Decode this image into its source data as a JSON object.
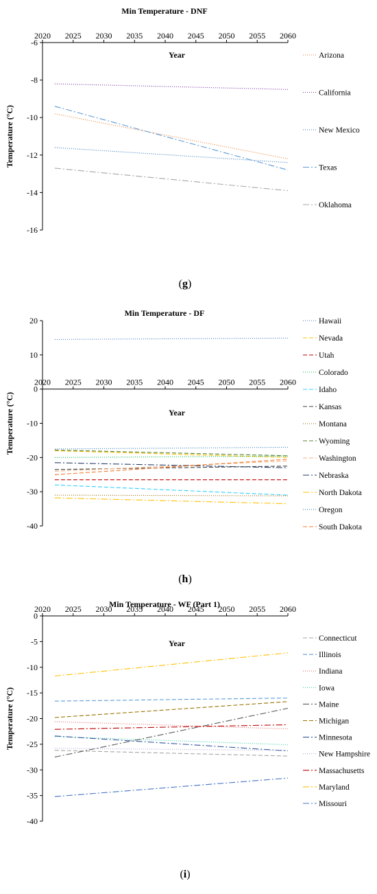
{
  "chart_data": [
    {
      "type": "line",
      "panel_label": "g",
      "title": "Min Temperature - DNF",
      "xlabel": "Year",
      "ylabel": "Temperature (°C)",
      "xticks": [
        2020,
        2025,
        2030,
        2035,
        2040,
        2045,
        2050,
        2055,
        2060
      ],
      "yticks": [
        -6,
        -8,
        -10,
        -12,
        -14,
        -16
      ],
      "xlim": [
        2020,
        2060
      ],
      "ylim": [
        -16,
        -6
      ],
      "legend_position": "right",
      "series": [
        {
          "name": "Arizona",
          "x": [
            2022,
            2060
          ],
          "y": [
            -9.8,
            -12.2
          ],
          "color": "#ed7d31",
          "dash": "1,2"
        },
        {
          "name": "California",
          "x": [
            2022,
            2060
          ],
          "y": [
            -8.2,
            -8.5
          ],
          "color": "#7030a0",
          "dash": "1,2"
        },
        {
          "name": "New Mexico",
          "x": [
            2022,
            2060
          ],
          "y": [
            -11.6,
            -12.4
          ],
          "color": "#2e75b6",
          "dash": "1,2"
        },
        {
          "name": "Texas",
          "x": [
            2022,
            2060
          ],
          "y": [
            -9.4,
            -12.8
          ],
          "color": "#5b9bd5",
          "dash": "9,3,2,3"
        },
        {
          "name": "Oklahoma",
          "x": [
            2022,
            2060
          ],
          "y": [
            -12.7,
            -13.9
          ],
          "color": "#a5a5a5",
          "dash": "9,3,2,3"
        }
      ]
    },
    {
      "type": "line",
      "panel_label": "h",
      "title": "Min Temperature - DF",
      "xlabel": "Year",
      "ylabel": "Temperature (°C)",
      "xticks": [
        2020,
        2025,
        2030,
        2035,
        2040,
        2045,
        2050,
        2055,
        2060
      ],
      "yticks": [
        20,
        10,
        0,
        -10,
        -20,
        -30,
        -40
      ],
      "xlim": [
        2020,
        2060
      ],
      "ylim": [
        -40,
        20
      ],
      "legend_position": "right",
      "series": [
        {
          "name": "Hawaii",
          "x": [
            2022,
            2060
          ],
          "y": [
            14.5,
            14.9
          ],
          "color": "#4472c4",
          "dash": "1,2"
        },
        {
          "name": "Nevada",
          "x": [
            2022,
            2060
          ],
          "y": [
            -18.0,
            -20.0
          ],
          "color": "#ffc000",
          "dash": "6,3"
        },
        {
          "name": "Utah",
          "x": [
            2022,
            2060
          ],
          "y": [
            -26.5,
            -26.5
          ],
          "color": "#c00000",
          "dash": "6,3"
        },
        {
          "name": "Colorado",
          "x": [
            2022,
            2060
          ],
          "y": [
            -20.0,
            -19.6
          ],
          "color": "#00b050",
          "dash": "1,2"
        },
        {
          "name": "Idaho",
          "x": [
            2022,
            2060
          ],
          "y": [
            -28.0,
            -31.0
          ],
          "color": "#33ccff",
          "dash": "6,3"
        },
        {
          "name": "Kansas",
          "x": [
            2022,
            2060
          ],
          "y": [
            -23.5,
            -22.5
          ],
          "color": "#404040",
          "dash": "6,3"
        },
        {
          "name": "Montana",
          "x": [
            2022,
            2060
          ],
          "y": [
            -31.0,
            -31.2
          ],
          "color": "#996600",
          "dash": "1,2"
        },
        {
          "name": "Wyoming",
          "x": [
            2022,
            2060
          ],
          "y": [
            -17.8,
            -19.5
          ],
          "color": "#548235",
          "dash": "6,3"
        },
        {
          "name": "Washington",
          "x": [
            2022,
            2060
          ],
          "y": [
            -24.0,
            -21.0
          ],
          "color": "#f4b183",
          "dash": "6,3"
        },
        {
          "name": "Nebraska",
          "x": [
            2022,
            2060
          ],
          "y": [
            -21.5,
            -23.0
          ],
          "color": "#1f3864",
          "dash": "9,3,2,3"
        },
        {
          "name": "North Dakota",
          "x": [
            2022,
            2060
          ],
          "y": [
            -31.8,
            -33.5
          ],
          "color": "#ffc000",
          "dash": "9,3,2,3"
        },
        {
          "name": "Oregon",
          "x": [
            2022,
            2060
          ],
          "y": [
            -17.5,
            -17.0
          ],
          "color": "#2e75b6",
          "dash": "1,2"
        },
        {
          "name": "South Dakota",
          "x": [
            2022,
            2060
          ],
          "y": [
            -25.0,
            -20.5
          ],
          "color": "#ed7d31",
          "dash": "6,3"
        }
      ]
    },
    {
      "type": "line",
      "panel_label": "i",
      "title": "Min Temperature - WF (Part 1)",
      "xlabel": "Year",
      "ylabel": "Temperature (°C)",
      "xticks": [
        2020,
        2025,
        2030,
        2035,
        2040,
        2045,
        2050,
        2055,
        2060
      ],
      "yticks": [
        0,
        -5,
        -10,
        -15,
        -20,
        -25,
        -30,
        -35,
        -40
      ],
      "xlim": [
        2020,
        2060
      ],
      "ylim": [
        -40,
        0
      ],
      "legend_position": "right",
      "series": [
        {
          "name": "Connecticut",
          "x": [
            2022,
            2060
          ],
          "y": [
            -26.2,
            -27.3
          ],
          "color": "#a5a5a5",
          "dash": "6,3"
        },
        {
          "name": "Illinois",
          "x": [
            2022,
            2060
          ],
          "y": [
            -16.6,
            -16.0
          ],
          "color": "#5b9bd5",
          "dash": "6,3"
        },
        {
          "name": "Indiana",
          "x": [
            2022,
            2060
          ],
          "y": [
            -20.6,
            -22.0
          ],
          "color": "#e06666",
          "dash": "1,2"
        },
        {
          "name": "Iowa",
          "x": [
            2022,
            2060
          ],
          "y": [
            -23.5,
            -25.1
          ],
          "color": "#33ccaa",
          "dash": "1,2"
        },
        {
          "name": "Maine",
          "x": [
            2022,
            2060
          ],
          "y": [
            -27.5,
            -18.0
          ],
          "color": "#595959",
          "dash": "9,3,2,3"
        },
        {
          "name": "Michigan",
          "x": [
            2022,
            2060
          ],
          "y": [
            -19.8,
            -16.7
          ],
          "color": "#997300",
          "dash": "6,3"
        },
        {
          "name": "Minnesota",
          "x": [
            2022,
            2060
          ],
          "y": [
            -23.4,
            -26.3
          ],
          "color": "#2f5597",
          "dash": "9,3,2,3"
        },
        {
          "name": "New Hampshire",
          "x": [
            2022,
            2060
          ],
          "y": [
            -25.8,
            -26.2
          ],
          "color": "#b4a7d6",
          "dash": "1,2"
        },
        {
          "name": "Massachusetts",
          "x": [
            2022,
            2060
          ],
          "y": [
            -22.1,
            -21.2
          ],
          "color": "#c00000",
          "dash": "9,3,2,3"
        },
        {
          "name": "Maryland",
          "x": [
            2022,
            2060
          ],
          "y": [
            -11.7,
            -7.2
          ],
          "color": "#ffc000",
          "dash": "9,3,2,3"
        },
        {
          "name": "Missouri",
          "x": [
            2022,
            2060
          ],
          "y": [
            -35.2,
            -31.6
          ],
          "color": "#4472c4",
          "dash": "9,3,2,3"
        }
      ]
    }
  ]
}
